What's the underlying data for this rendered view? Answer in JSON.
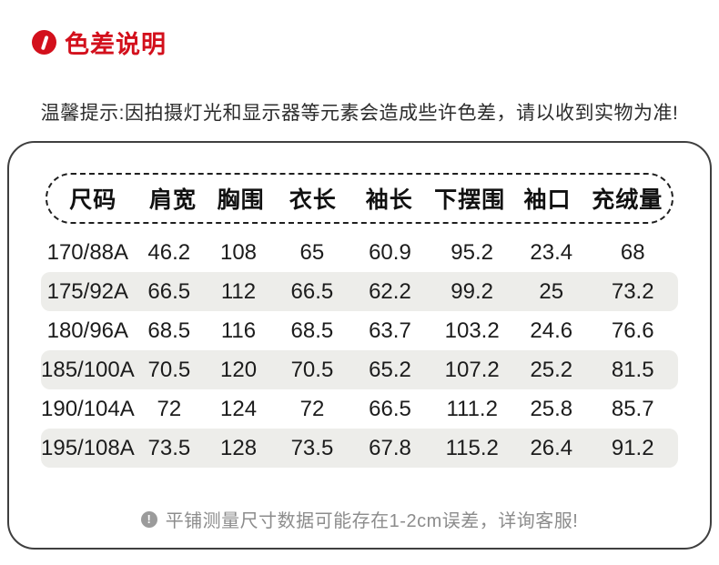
{
  "colors": {
    "accent": "#d3101c",
    "zebra": "#ededea",
    "card_border": "#3f3f3f",
    "note_grey": "#8c8c8c"
  },
  "title": {
    "text": "色差说明",
    "icon": "slash-circle-icon"
  },
  "tip": "温馨提示:因拍摄灯光和显示器等元素会造成些许色差，请以收到实物为准!",
  "table": {
    "headers": [
      "尺码",
      "肩宽",
      "胸围",
      "衣长",
      "袖长",
      "下摆围",
      "袖口",
      "充绒量"
    ],
    "rows": [
      [
        "170/88A",
        "46.2",
        "108",
        "65",
        "60.9",
        "95.2",
        "23.4",
        "68"
      ],
      [
        "175/92A",
        "66.5",
        "112",
        "66.5",
        "62.2",
        "99.2",
        "25",
        "73.2"
      ],
      [
        "180/96A",
        "68.5",
        "116",
        "68.5",
        "63.7",
        "103.2",
        "24.6",
        "76.6"
      ],
      [
        "185/100A",
        "70.5",
        "120",
        "70.5",
        "65.2",
        "107.2",
        "25.2",
        "81.5"
      ],
      [
        "190/104A",
        "72",
        "124",
        "72",
        "66.5",
        "111.2",
        "25.8",
        "85.7"
      ],
      [
        "195/108A",
        "73.5",
        "128",
        "73.5",
        "67.8",
        "115.2",
        "26.4",
        "91.2"
      ]
    ]
  },
  "note": {
    "icon": "exclamation-circle-icon",
    "text": "平铺测量尺寸数据可能存在1-2cm误差，详询客服!"
  }
}
